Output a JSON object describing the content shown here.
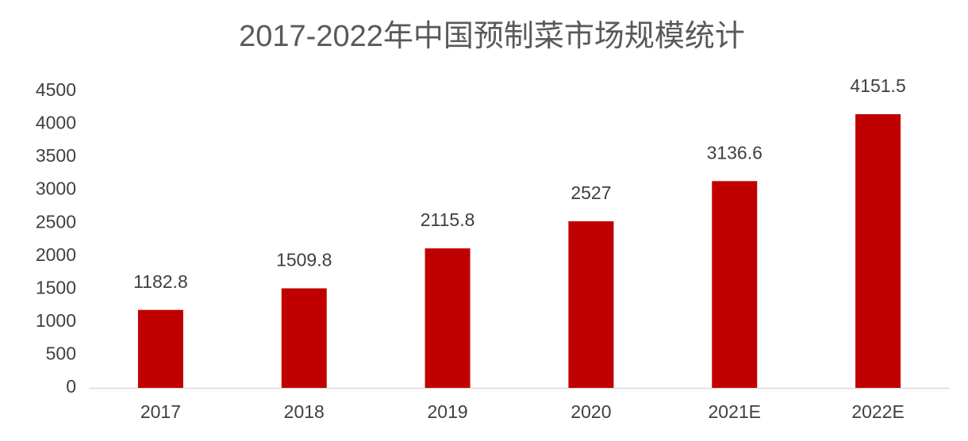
{
  "chart_data": {
    "type": "bar",
    "title": "2017-2022年中国预制菜市场规模统计",
    "categories": [
      "2017",
      "2018",
      "2019",
      "2020",
      "2021E",
      "2022E"
    ],
    "values": [
      1182.8,
      1509.8,
      2115.8,
      2527,
      3136.6,
      4151.5
    ],
    "color": "#c00000",
    "ylim": [
      0,
      4500
    ],
    "yticks": [
      0,
      500,
      1000,
      1500,
      2000,
      2500,
      3000,
      3500,
      4000,
      4500
    ],
    "grid": false
  }
}
